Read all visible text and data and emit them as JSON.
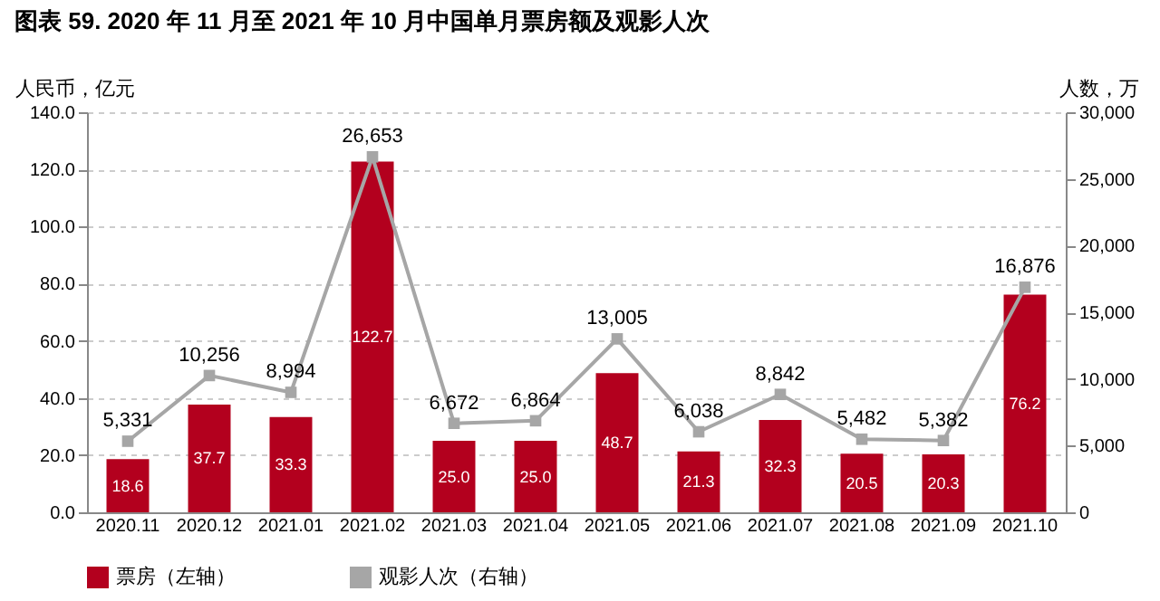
{
  "chart_data": {
    "type": "bar",
    "title": "图表 59. 2020 年 11 月至 2021 年 10 月中国单月票房额及观影人次",
    "ylabel": "人民币，亿元",
    "y2label": "人数，万",
    "categories": [
      "2020.11",
      "2020.12",
      "2021.01",
      "2021.02",
      "2021.03",
      "2021.04",
      "2021.05",
      "2021.06",
      "2021.07",
      "2021.08",
      "2021.09",
      "2021.10"
    ],
    "ylim": [
      0,
      140
    ],
    "yticks": [
      {
        "value": 0,
        "label": "0.0"
      },
      {
        "value": 20,
        "label": "20.0"
      },
      {
        "value": 40,
        "label": "40.0"
      },
      {
        "value": 60,
        "label": "60.0"
      },
      {
        "value": 80,
        "label": "80.0"
      },
      {
        "value": 100,
        "label": "100.0"
      },
      {
        "value": 120,
        "label": "120.0"
      },
      {
        "value": 140,
        "label": "140.0"
      }
    ],
    "y2lim": [
      0,
      30000
    ],
    "y2ticks": [
      0,
      {
        "value": 5000,
        "label": "5,000"
      },
      {
        "value": 10000,
        "label": "10,000"
      },
      {
        "value": 15000,
        "label": "15,000"
      },
      {
        "value": 20000,
        "label": "20,000"
      },
      {
        "value": 25000,
        "label": "25,000"
      },
      {
        "value": 30000,
        "label": "30,000"
      }
    ],
    "series": [
      {
        "name": "票房（左轴）",
        "color": "#b3001e",
        "values": [
          18.6,
          37.7,
          33.3,
          122.7,
          25.0,
          25.0,
          48.7,
          21.3,
          32.3,
          20.5,
          20.3,
          76.2
        ],
        "value_labels": [
          "18.6",
          "37.7",
          "33.3",
          "122.7",
          "25.0",
          "25.0",
          "48.7",
          "21.3",
          "32.3",
          "20.5",
          "20.3",
          "76.2"
        ]
      },
      {
        "name": "观影人次（右轴）",
        "type": "line",
        "axis": "y2",
        "marker": "square",
        "color": "#a6a6a6",
        "values": [
          5331,
          10256,
          8994,
          26653,
          6672,
          6864,
          13005,
          6038,
          8842,
          5482,
          5382,
          16876
        ],
        "value_labels": [
          "5,331",
          "10,256",
          "8,994",
          "26,653",
          "6,672",
          "6,864",
          "13,005",
          "6,038",
          "8,842",
          "5,482",
          "5,382",
          "16,876"
        ]
      }
    ],
    "grid": "y",
    "legend": "bottom"
  }
}
